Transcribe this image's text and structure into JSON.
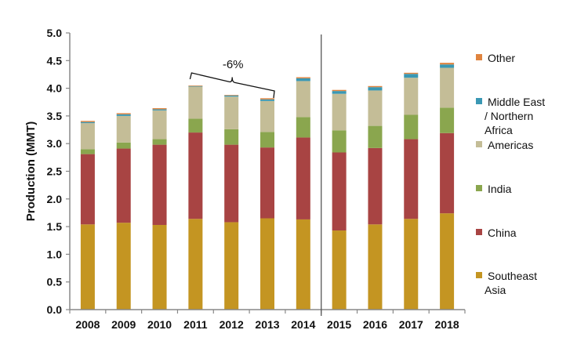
{
  "chart_data": {
    "type": "bar",
    "stacked": true,
    "title": "",
    "xlabel": "",
    "ylabel": "Production (MMT)",
    "ylim": [
      0,
      5.0
    ],
    "yticks": [
      "0.0",
      "0.5",
      "1.0",
      "1.5",
      "2.0",
      "2.5",
      "3.0",
      "3.5",
      "4.0",
      "4.5",
      "5.0"
    ],
    "grid": false,
    "legend_position": "right",
    "categories": [
      "2008",
      "2009",
      "2010",
      "2011",
      "2012",
      "2013",
      "2014",
      "2015",
      "2016",
      "2017",
      "2018"
    ],
    "series": [
      {
        "name": "Southeast Asia",
        "legend_lines": [
          "Southeast",
          "Asia"
        ],
        "color": "#C49522",
        "values": [
          1.54,
          1.57,
          1.53,
          1.64,
          1.58,
          1.65,
          1.63,
          1.43,
          1.54,
          1.64,
          1.74
        ]
      },
      {
        "name": "China",
        "legend_lines": [
          "China"
        ],
        "color": "#A84443",
        "values": [
          1.27,
          1.34,
          1.45,
          1.56,
          1.4,
          1.28,
          1.48,
          1.41,
          1.38,
          1.44,
          1.45
        ]
      },
      {
        "name": "India",
        "legend_lines": [
          "India"
        ],
        "color": "#8AA64E",
        "values": [
          0.09,
          0.11,
          0.1,
          0.25,
          0.28,
          0.28,
          0.37,
          0.4,
          0.4,
          0.44,
          0.46
        ]
      },
      {
        "name": "Americas",
        "legend_lines": [
          "Americas"
        ],
        "color": "#C4BD97",
        "values": [
          0.47,
          0.48,
          0.52,
          0.58,
          0.59,
          0.56,
          0.65,
          0.66,
          0.64,
          0.67,
          0.72
        ]
      },
      {
        "name": "Middle East / Northern Africa",
        "legend_lines": [
          "Middle East",
          "/ Northern",
          "Africa"
        ],
        "color": "#3A98B4",
        "values": [
          0.02,
          0.03,
          0.02,
          0.01,
          0.02,
          0.03,
          0.05,
          0.05,
          0.06,
          0.07,
          0.06
        ]
      },
      {
        "name": "Other",
        "legend_lines": [
          "Other"
        ],
        "color": "#E0843F",
        "values": [
          0.02,
          0.02,
          0.02,
          0.01,
          0.01,
          0.02,
          0.02,
          0.02,
          0.02,
          0.02,
          0.03
        ]
      }
    ],
    "annotations": [
      {
        "text": "-6%",
        "type": "brace",
        "from_category": "2011",
        "to_category": "2013"
      },
      {
        "type": "vertical-divider",
        "between": [
          "2014",
          "2015"
        ]
      }
    ]
  }
}
